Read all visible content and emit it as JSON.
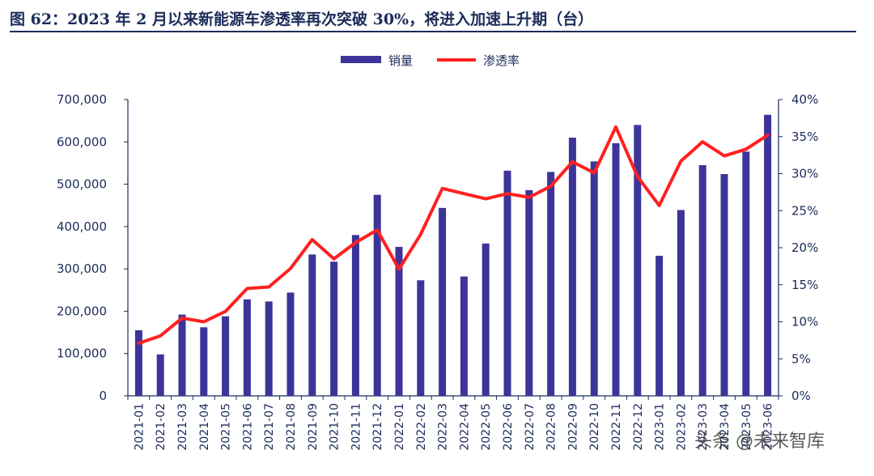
{
  "header": {
    "title": "图 62：2023 年 2 月以来新能源车渗透率再次突破 30%，将进入加速上升期（台）"
  },
  "watermark": {
    "text": "头条 @未来智库"
  },
  "colors": {
    "bar": "#3d3499",
    "line": "#ff2020",
    "axis": "#1c2c5a"
  },
  "chart_data": {
    "type": "bar",
    "categories": [
      "2021-01",
      "2021-02",
      "2021-03",
      "2021-04",
      "2021-05",
      "2021-06",
      "2021-07",
      "2021-08",
      "2021-09",
      "2021-10",
      "2021-11",
      "2021-12",
      "2022-01",
      "2022-02",
      "2022-03",
      "2022-04",
      "2022-05",
      "2022-06",
      "2022-07",
      "2022-08",
      "2022-09",
      "2022-10",
      "2022-11",
      "2022-12",
      "2023-01",
      "2023-02",
      "2023-03",
      "2023-04",
      "2023-05",
      "2023-06"
    ],
    "series": [
      {
        "name": "销量",
        "type": "bar",
        "axis": "left",
        "values": [
          155000,
          98000,
          192000,
          162000,
          188000,
          228000,
          223000,
          244000,
          334000,
          317000,
          380000,
          475000,
          352000,
          273000,
          444000,
          282000,
          360000,
          532000,
          486000,
          529000,
          610000,
          554000,
          597000,
          640000,
          331000,
          439000,
          545000,
          524000,
          577000,
          664000
        ]
      },
      {
        "name": "渗透率",
        "type": "line",
        "axis": "right",
        "values": [
          0.071,
          0.081,
          0.105,
          0.1,
          0.114,
          0.145,
          0.147,
          0.172,
          0.211,
          0.185,
          0.207,
          0.224,
          0.171,
          0.218,
          0.28,
          0.273,
          0.266,
          0.273,
          0.268,
          0.283,
          0.316,
          0.301,
          0.363,
          0.296,
          0.257,
          0.317,
          0.343,
          0.324,
          0.333,
          0.352
        ]
      }
    ],
    "y_left": {
      "min": 0,
      "max": 700000,
      "ticks": [
        0,
        100000,
        200000,
        300000,
        400000,
        500000,
        600000,
        700000
      ],
      "tick_labels": [
        "0",
        "100,000",
        "200,000",
        "300,000",
        "400,000",
        "500,000",
        "600,000",
        "700,000"
      ]
    },
    "y_right": {
      "min": 0,
      "max": 0.4,
      "ticks": [
        0,
        0.05,
        0.1,
        0.15,
        0.2,
        0.25,
        0.3,
        0.35,
        0.4
      ],
      "tick_labels": [
        "0%",
        "5%",
        "10%",
        "15%",
        "20%",
        "25%",
        "30%",
        "35%",
        "40%"
      ]
    },
    "legend": {
      "position": "top-center",
      "items": [
        "销量",
        "渗透率"
      ]
    },
    "grid": false
  }
}
